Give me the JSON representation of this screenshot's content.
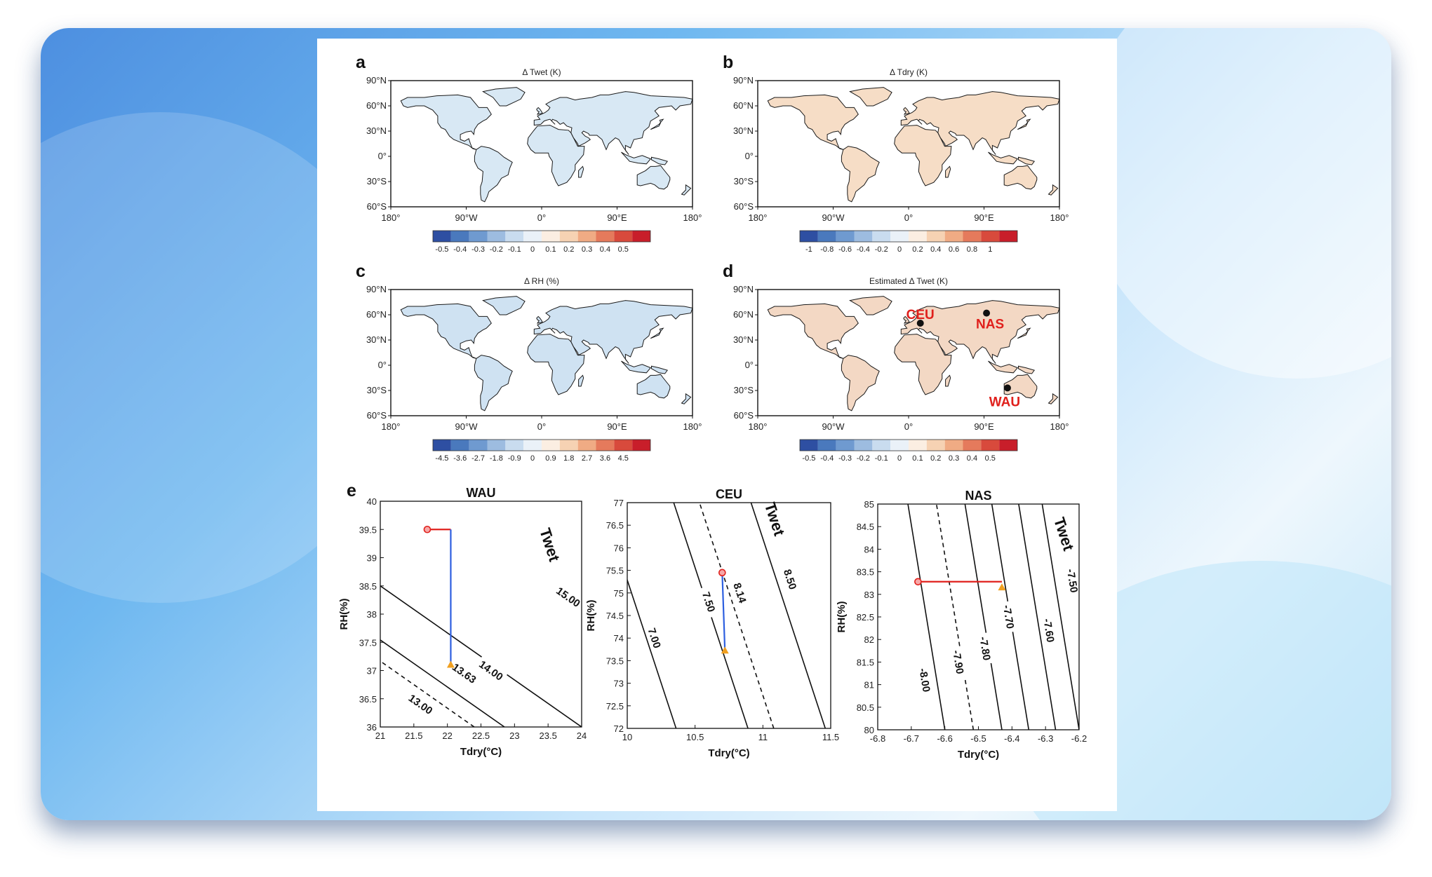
{
  "figure": {
    "panels": [
      {
        "letter": "a",
        "title": "Δ Twet (K)",
        "colorbar": [
          "-0.5",
          "-0.4",
          "-0.3",
          "-0.2",
          "-0.1",
          "0",
          "0.1",
          "0.2",
          "0.3",
          "0.4",
          "0.5"
        ],
        "tint": "#d8e8f4"
      },
      {
        "letter": "b",
        "title": "Δ Tdry (K)",
        "colorbar": [
          "-1",
          "-0.8",
          "-0.6",
          "-0.4",
          "-0.2",
          "0",
          "0.2",
          "0.4",
          "0.6",
          "0.8",
          "1"
        ],
        "tint": "#f6ddc6"
      },
      {
        "letter": "c",
        "title": "Δ RH (%)",
        "colorbar": [
          "-4.5",
          "-3.6",
          "-2.7",
          "-1.8",
          "-0.9",
          "0",
          "0.9",
          "1.8",
          "2.7",
          "3.6",
          "4.5"
        ],
        "tint": "#cfe2f2"
      },
      {
        "letter": "d",
        "title": "Estimated Δ Twet (K)",
        "colorbar": [
          "-0.5",
          "-0.4",
          "-0.3",
          "-0.2",
          "-0.1",
          "0",
          "0.1",
          "0.2",
          "0.3",
          "0.4",
          "0.5"
        ],
        "tint": "#f3d8c4"
      }
    ],
    "map_lat_ticks": [
      "90°N",
      "60°N",
      "30°N",
      "0°",
      "30°S",
      "60°S"
    ],
    "map_lon_ticks": [
      "180°",
      "90°W",
      "0°",
      "90°E",
      "180°"
    ],
    "regions": [
      {
        "name": "CEU",
        "lon": 14,
        "lat": 50
      },
      {
        "name": "NAS",
        "lon": 93,
        "lat": 62
      },
      {
        "name": "WAU",
        "lon": 118,
        "lat": -27
      }
    ],
    "colors": {
      "red": "#e0201c",
      "blue": "#2d5fe0",
      "orange": "#f0a020",
      "diverging_neg": "#2e4fa2",
      "diverging_pos": "#c81e2a"
    },
    "panel_e_letter": "e",
    "subplots": [
      {
        "title": "WAU",
        "xlabel": "Tdry(°C)",
        "ylabel": "RH(%)",
        "xlim": [
          21,
          24
        ],
        "ylim": [
          36,
          40
        ],
        "xticks": [
          "21",
          "21.5",
          "22",
          "22.5",
          "23",
          "23.5",
          "24"
        ],
        "yticks": [
          "36",
          "36.5",
          "37",
          "37.5",
          "38",
          "38.5",
          "39",
          "39.5",
          "40"
        ],
        "slope": -1.2,
        "contours": [
          {
            "label": "13.00",
            "x0": 20.94,
            "dashed": false,
            "label_at": [
              21.6,
              36.4
            ]
          },
          {
            "label": "13.63",
            "x0": 22.4,
            "dashed": true,
            "label_at": [
              22.25,
              36.95
            ]
          },
          {
            "label": "14.00",
            "x0": 22.85,
            "dashed": false,
            "label_at": [
              22.65,
              37.0
            ]
          },
          {
            "label": "15.00",
            "x0": 24.0,
            "dashed": false,
            "label_at": [
              23.8,
              38.3
            ]
          }
        ],
        "twet_label": "Twet",
        "twet_at": [
          23.45,
          39.2
        ],
        "start": [
          21.7,
          39.5
        ],
        "corner": [
          22.05,
          39.5
        ],
        "end": [
          22.05,
          37.1
        ],
        "legs": [
          [
            "start",
            "corner",
            "red"
          ],
          [
            "corner",
            "end",
            "blue"
          ]
        ]
      },
      {
        "title": "CEU",
        "xlabel": "Tdry(°C)",
        "ylabel": "RH(%)",
        "xlim": [
          10,
          11.5
        ],
        "ylim": [
          72,
          77
        ],
        "xticks": [
          "10",
          "10.5",
          "11",
          "11.5"
        ],
        "yticks": [
          "72",
          "72.5",
          "73",
          "73.5",
          "74",
          "74.5",
          "75",
          "75.5",
          "76",
          "76.5",
          "77"
        ],
        "slope": -0.1095,
        "contours": [
          {
            "label": "7.00",
            "x0": 10.36,
            "dashed": false,
            "label_at": [
              10.2,
              74.0
            ]
          },
          {
            "label": "7.50",
            "x0": 10.89,
            "dashed": false,
            "label_at": [
              10.6,
              74.8
            ]
          },
          {
            "label": "8.14",
            "x0": 11.08,
            "dashed": true,
            "label_at": [
              10.83,
              75.0
            ]
          },
          {
            "label": "8.50",
            "x0": 11.46,
            "dashed": false,
            "label_at": [
              11.2,
              75.3
            ]
          }
        ],
        "twet_label": "Twet",
        "twet_at": [
          11.05,
          76.6
        ],
        "start": [
          10.7,
          75.45
        ],
        "end": [
          10.72,
          73.72
        ],
        "legs": [
          [
            "start",
            "end",
            "blue"
          ]
        ]
      },
      {
        "title": "NAS",
        "xlabel": "Tdry(°C)",
        "ylabel": "RH(%)",
        "xlim": [
          -6.8,
          -6.2
        ],
        "ylim": [
          80,
          85
        ],
        "xticks": [
          "-6.8",
          "-6.7",
          "-6.6",
          "-6.5",
          "-6.4",
          "-6.3",
          "-6.2"
        ],
        "yticks": [
          "80",
          "80.5",
          "81",
          "81.5",
          "82",
          "82.5",
          "83",
          "83.5",
          "84",
          "84.5",
          "85"
        ],
        "slope": -0.022,
        "contours": [
          {
            "label": "-8.00",
            "x0": -6.6,
            "dashed": false,
            "label_at": [
              -6.66,
              81.1
            ]
          },
          {
            "label": "-7.90",
            "x0": -6.515,
            "dashed": true,
            "label_at": [
              -6.56,
              81.5
            ]
          },
          {
            "label": "-7.80",
            "x0": -6.43,
            "dashed": false,
            "label_at": [
              -6.48,
              81.8
            ]
          },
          {
            "label": "-7.70",
            "x0": -6.35,
            "dashed": false,
            "label_at": [
              -6.41,
              82.5
            ]
          },
          {
            "label": "-7.60",
            "x0": -6.27,
            "dashed": false,
            "label_at": [
              -6.29,
              82.2
            ]
          },
          {
            "label": "-7.50",
            "x0": -6.2,
            "dashed": false,
            "label_at": [
              -6.22,
              83.3
            ]
          }
        ],
        "twet_label": "Twet",
        "twet_at": [
          -6.26,
          84.3
        ],
        "start": [
          -6.68,
          83.28
        ],
        "corner": [
          -6.43,
          83.28
        ],
        "end": [
          -6.43,
          83.15
        ],
        "legs": [
          [
            "start",
            "corner",
            "red"
          ]
        ]
      }
    ]
  }
}
